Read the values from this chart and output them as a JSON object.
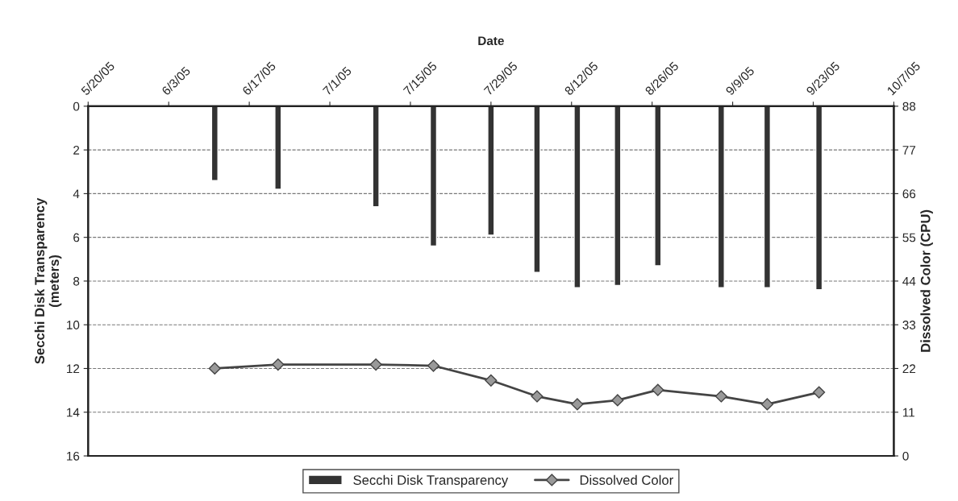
{
  "chart_data": {
    "type": "bar",
    "xlabel": "Date",
    "ylabel": "Secchi Disk Transparency\n(meters)",
    "y2label": "Dissolved Color (CPU)",
    "x": [
      "2005-06-11",
      "2005-06-22",
      "2005-07-09",
      "2005-07-19",
      "2005-07-29",
      "2005-08-06",
      "2005-08-13",
      "2005-08-20",
      "2005-08-27",
      "2005-09-07",
      "2005-09-15",
      "2005-09-24"
    ],
    "series": [
      {
        "name": "Secchi Disk Transparency",
        "color": "#333333",
        "values": [
          3.4,
          3.8,
          4.6,
          6.4,
          5.9,
          7.6,
          8.3,
          8.2,
          7.3,
          8.3,
          8.3,
          8.4
        ]
      },
      {
        "name": "Dissolved Color",
        "type": "line",
        "axis": "y2",
        "color": "#444444",
        "marker": "diamond",
        "values": [
          22,
          23,
          23,
          22.7,
          19,
          15,
          13,
          14,
          16.6,
          15,
          13,
          16
        ]
      }
    ],
    "xlim": [
      "2005-05-20",
      "2005-10-07"
    ],
    "xticks": [
      {
        "value": "2005-05-20",
        "label": "5/20/05"
      },
      {
        "value": "2005-06-03",
        "label": "6/3/05"
      },
      {
        "value": "2005-06-17",
        "label": "6/17/05"
      },
      {
        "value": "2005-07-01",
        "label": "7/1/05"
      },
      {
        "value": "2005-07-15",
        "label": "7/15/05"
      },
      {
        "value": "2005-07-29",
        "label": "7/29/05"
      },
      {
        "value": "2005-08-12",
        "label": "8/12/05"
      },
      {
        "value": "2005-08-26",
        "label": "8/26/05"
      },
      {
        "value": "2005-09-09",
        "label": "9/9/05"
      },
      {
        "value": "2005-09-23",
        "label": "9/23/05"
      },
      {
        "value": "2005-10-07",
        "label": "10/7/05"
      }
    ],
    "ylim": [
      16,
      0
    ],
    "yticks": [
      0,
      2,
      4,
      6,
      8,
      10,
      12,
      14,
      16
    ],
    "y2lim": [
      0,
      88
    ],
    "y2ticks": [
      0,
      11,
      22,
      33,
      44,
      55,
      66,
      77,
      88
    ],
    "grid": "y",
    "legend": "bottom",
    "line_style": "solid"
  }
}
